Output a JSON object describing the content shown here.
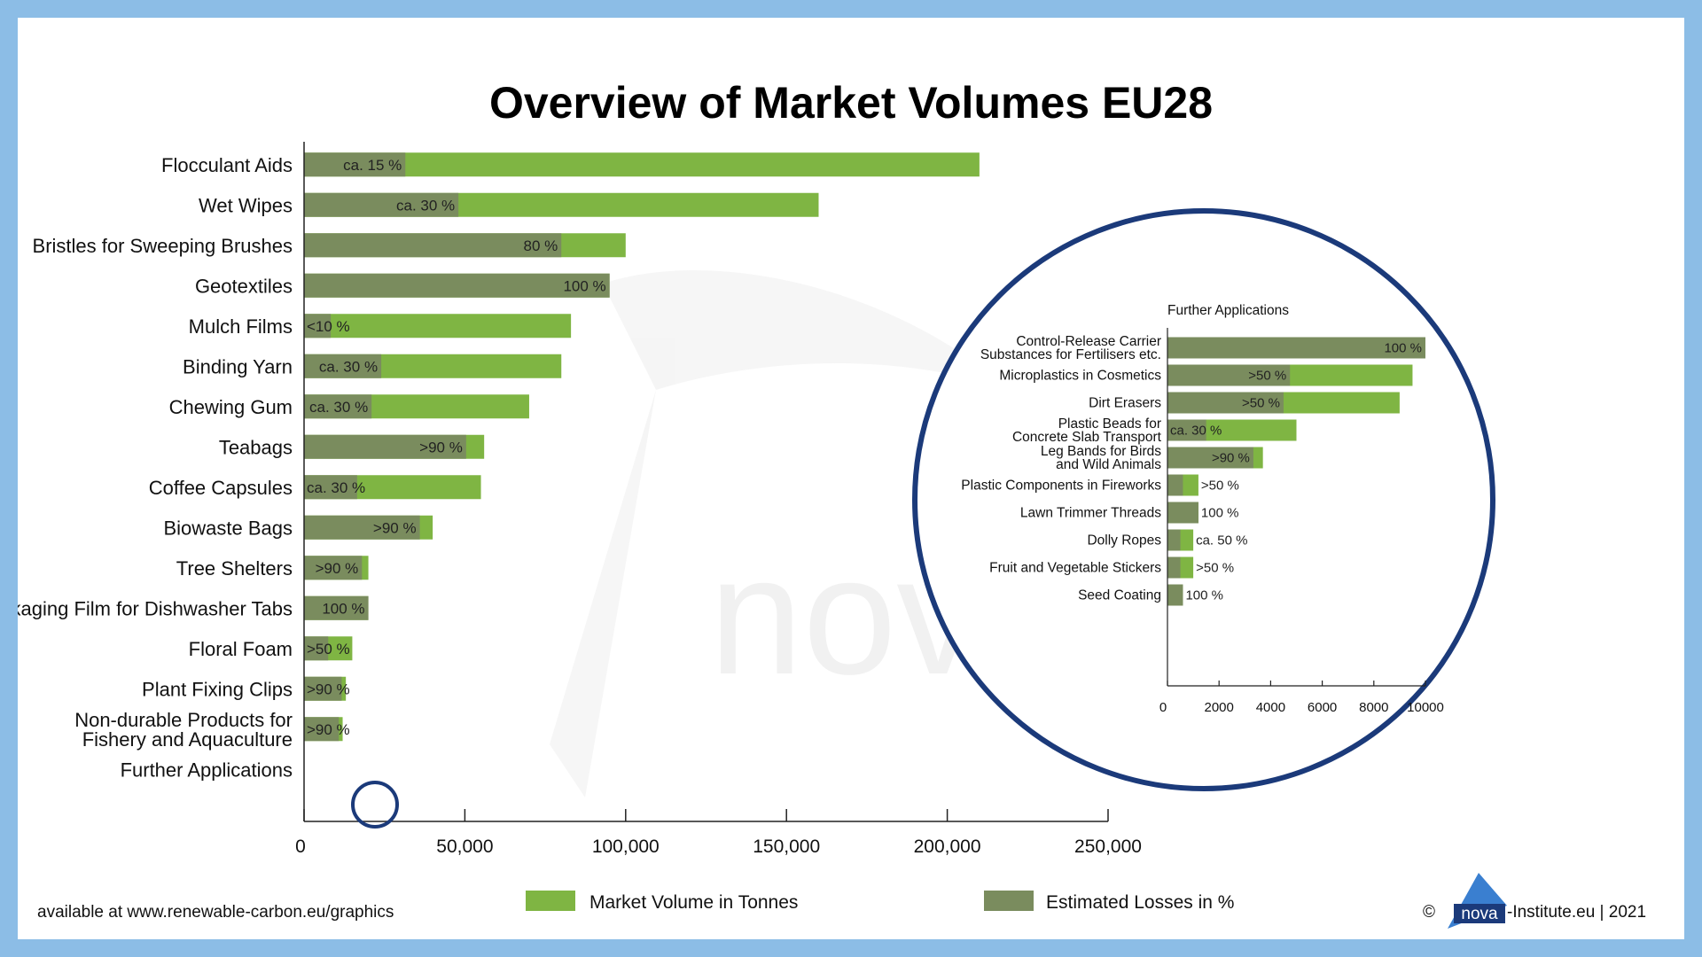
{
  "chart_data": [
    {
      "type": "bar",
      "orientation": "horizontal",
      "stacked": true,
      "title": "Overview of Market Volumes EU28",
      "categories": [
        "Flocculant Aids",
        "Wet Wipes",
        "Bristles for Sweeping Brushes",
        "Geotextiles",
        "Mulch Films",
        "Binding Yarn",
        "Chewing Gum",
        "Teabags",
        "Coffee Capsules",
        "Biowaste Bags",
        "Tree Shelters",
        "Packaging Film for Dishwasher Tabs",
        "Floral Foam",
        "Plant Fixing Clips",
        "Non-durable Products for\nFishery and Aquaculture",
        "Further Applications"
      ],
      "market_volume": [
        210000,
        160000,
        100000,
        95000,
        83000,
        80000,
        70000,
        56000,
        55000,
        40000,
        20000,
        20000,
        15000,
        13000,
        12000,
        0
      ],
      "loss_fraction": [
        0.15,
        0.3,
        0.8,
        1.0,
        0.1,
        0.3,
        0.3,
        0.9,
        0.3,
        0.9,
        0.9,
        1.0,
        0.5,
        0.9,
        0.9,
        0
      ],
      "loss_labels": [
        "ca. 15 %",
        "ca. 30 %",
        "80 %",
        "100 %",
        "<10 %",
        "ca. 30 %",
        "ca. 30 %",
        ">90 %",
        "ca. 30 %",
        ">90 %",
        ">90 %",
        "100 %",
        ">50 %",
        ">90 %",
        ">90 %",
        ""
      ],
      "series": [
        {
          "name": "Market Volume in Tonnes",
          "color": "#7fb543"
        },
        {
          "name": "Estimated Losses in %",
          "color": "#7a8c5e"
        }
      ],
      "xlim": [
        0,
        250000
      ],
      "xticks": [
        "0",
        "50,000",
        "100,000",
        "150,000",
        "200,000",
        "250,000"
      ],
      "legend": "bottom"
    },
    {
      "type": "bar",
      "orientation": "horizontal",
      "stacked": true,
      "title": "Further Applications",
      "categories": [
        "Control-Release Carrier\nSubstances for Fertilisers etc.",
        "Microplastics in Cosmetics",
        "Dirt Erasers",
        "Plastic Beads for\nConcrete Slab Transport",
        "Leg Bands for Birds\nand Wild Animals",
        "Plastic Components in Fireworks",
        "Lawn Trimmer Threads",
        "Dolly Ropes",
        "Fruit and Vegetable Stickers",
        "Seed Coating"
      ],
      "market_volume": [
        10000,
        9500,
        9000,
        5000,
        3700,
        1200,
        1200,
        1000,
        1000,
        600
      ],
      "loss_fraction": [
        1.0,
        0.5,
        0.5,
        0.3,
        0.9,
        0.5,
        1.0,
        0.5,
        0.5,
        1.0
      ],
      "loss_labels": [
        "100 %",
        ">50 %",
        ">50 %",
        "ca. 30 %",
        ">90 %",
        ">50 %",
        "100 %",
        "ca. 50 %",
        ">50 %",
        "100 %"
      ],
      "xlim": [
        0,
        10000
      ],
      "xticks": [
        "0",
        "2000",
        "4000",
        "6000",
        "8000",
        "10000"
      ]
    }
  ],
  "legend": {
    "market_volume": "Market Volume in Tonnes",
    "losses": "Estimated Losses in %"
  },
  "footer": {
    "source": "available at www.renewable-carbon.eu/graphics",
    "copyright_prefix": "©",
    "logo_text": "nova",
    "copyright_suffix": "-Institute.eu | 2021"
  },
  "watermark": "nova",
  "colors": {
    "market_volume": "#7fb543",
    "losses": "#7a8c5e",
    "circle": "#1b3a7a",
    "frame": "#8cbde6"
  }
}
